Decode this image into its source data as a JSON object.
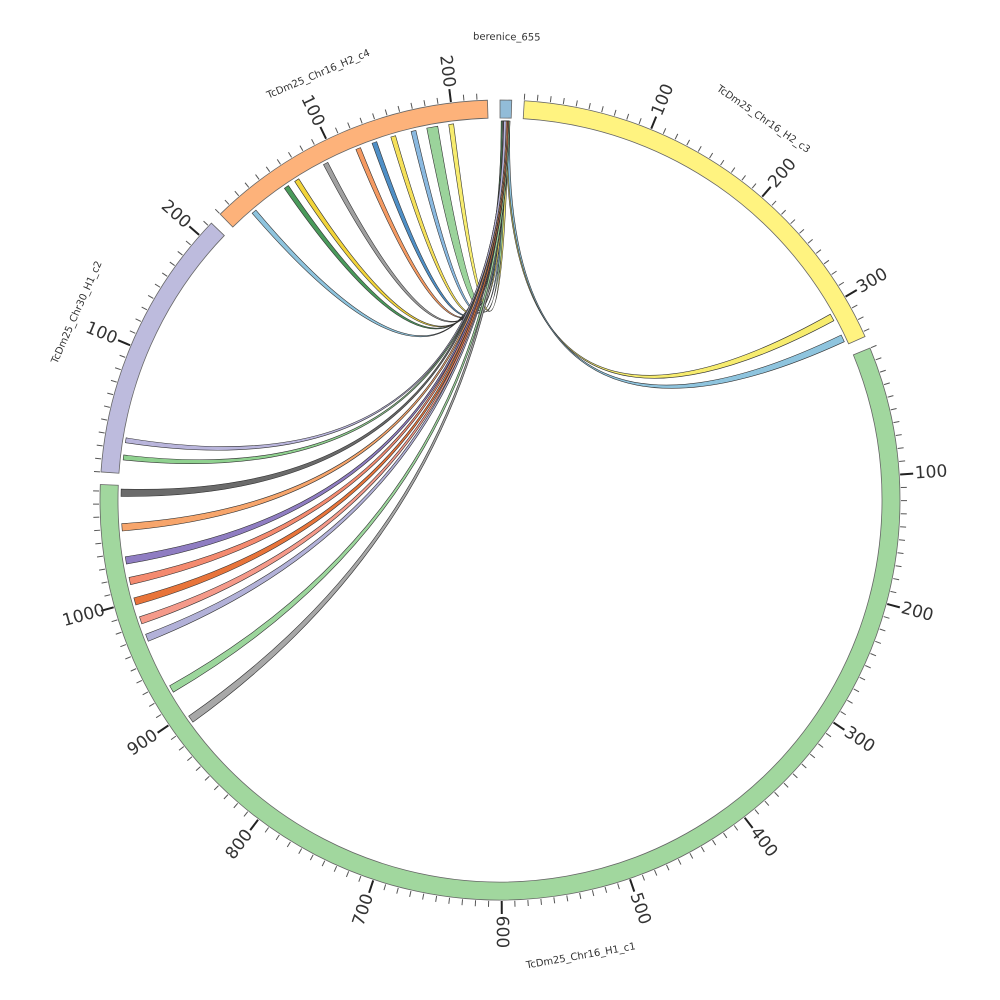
{
  "chart_data": {
    "type": "chord",
    "segments": [
      {
        "name": "berenice_655",
        "length": 9,
        "color": "#92bcd8",
        "ticks": []
      },
      {
        "name": "TcDm25_Chr16_H2_c3",
        "length": 334,
        "color": "#fff380",
        "ticks": [
          100,
          200,
          300
        ]
      },
      {
        "name": "TcDm25_Chr16_H1_c1",
        "length": 1095,
        "color": "#a1d79e",
        "ticks": [
          100,
          200,
          300,
          400,
          500,
          600,
          700,
          800,
          900,
          1000
        ]
      },
      {
        "name": "TcDm25_Chr30_H1_c2",
        "length": 213,
        "color": "#bdbbdd",
        "ticks": [
          100,
          200
        ]
      },
      {
        "name": "TcDm25_Chr16_H2_c4",
        "length": 228,
        "color": "#fdb27a",
        "ticks": [
          100,
          200
        ]
      }
    ],
    "links": [
      {
        "source": "berenice_655",
        "source_start": 1,
        "source_end": 3,
        "target": "TcDm25_Chr16_H2_c4",
        "target_start": 19,
        "target_end": 23,
        "color": "#8ec4de"
      },
      {
        "source": "berenice_655",
        "source_start": 1,
        "source_end": 3,
        "target": "TcDm25_Chr16_H2_c4",
        "target_start": 52,
        "target_end": 56,
        "color": "#4a9a5b"
      },
      {
        "source": "berenice_655",
        "source_start": 2,
        "source_end": 4,
        "target": "TcDm25_Chr16_H2_c4",
        "target_start": 62,
        "target_end": 66,
        "color": "#f2d43a"
      },
      {
        "source": "berenice_655",
        "source_start": 2,
        "source_end": 4,
        "target": "TcDm25_Chr16_H2_c4",
        "target_start": 89,
        "target_end": 93,
        "color": "#a0a0a0"
      },
      {
        "source": "berenice_655",
        "source_start": 3,
        "source_end": 5,
        "target": "TcDm25_Chr16_H2_c4",
        "target_start": 118,
        "target_end": 122,
        "color": "#f59a62"
      },
      {
        "source": "berenice_655",
        "source_start": 3,
        "source_end": 5,
        "target": "TcDm25_Chr16_H2_c4",
        "target_start": 132,
        "target_end": 136,
        "color": "#4f8fc6"
      },
      {
        "source": "berenice_655",
        "source_start": 3,
        "source_end": 5,
        "target": "TcDm25_Chr16_H2_c4",
        "target_start": 148,
        "target_end": 152,
        "color": "#f5e05a"
      },
      {
        "source": "berenice_655",
        "source_start": 4,
        "source_end": 6,
        "target": "TcDm25_Chr16_H2_c4",
        "target_start": 165,
        "target_end": 169,
        "color": "#8ab9e0"
      },
      {
        "source": "berenice_655",
        "source_start": 4,
        "source_end": 7,
        "target": "TcDm25_Chr16_H2_c4",
        "target_start": 178,
        "target_end": 187,
        "color": "#9bd39b"
      },
      {
        "source": "berenice_655",
        "source_start": 5,
        "source_end": 7,
        "target": "TcDm25_Chr16_H2_c4",
        "target_start": 196,
        "target_end": 200,
        "color": "#f7ec6e"
      },
      {
        "source": "berenice_655",
        "source_start": 5,
        "source_end": 7,
        "target": "TcDm25_Chr16_H2_c3",
        "target_start": 306,
        "target_end": 312,
        "color": "#f7ec6e"
      },
      {
        "source": "berenice_655",
        "source_start": 6,
        "source_end": 8,
        "target": "TcDm25_Chr16_H2_c3",
        "target_start": 325,
        "target_end": 331,
        "color": "#8ec4de"
      },
      {
        "source": "berenice_655",
        "source_start": 6,
        "source_end": 8,
        "target": "TcDm25_Chr16_H1_c1",
        "target_start": 891,
        "target_end": 897,
        "color": "#a8a8a8"
      },
      {
        "source": "berenice_655",
        "source_start": 6,
        "source_end": 8,
        "target": "TcDm25_Chr16_H1_c1",
        "target_start": 920,
        "target_end": 926,
        "color": "#9cd69c"
      },
      {
        "source": "berenice_655",
        "source_start": 5,
        "source_end": 7,
        "target": "TcDm25_Chr16_H1_c1",
        "target_start": 966,
        "target_end": 972,
        "color": "#b2b1d8"
      },
      {
        "source": "berenice_655",
        "source_start": 5,
        "source_end": 7,
        "target": "TcDm25_Chr16_H1_c1",
        "target_start": 981,
        "target_end": 987,
        "color": "#f59a8a"
      },
      {
        "source": "berenice_655",
        "source_start": 5,
        "source_end": 7,
        "target": "TcDm25_Chr16_H1_c1",
        "target_start": 997,
        "target_end": 1003,
        "color": "#e8743a"
      },
      {
        "source": "berenice_655",
        "source_start": 4,
        "source_end": 6,
        "target": "TcDm25_Chr16_H1_c1",
        "target_start": 1014,
        "target_end": 1020,
        "color": "#f48a6f"
      },
      {
        "source": "berenice_655",
        "source_start": 4,
        "source_end": 6,
        "target": "TcDm25_Chr16_H1_c1",
        "target_start": 1031,
        "target_end": 1037,
        "color": "#8f7dc2"
      },
      {
        "source": "berenice_655",
        "source_start": 4,
        "source_end": 6,
        "target": "TcDm25_Chr16_H1_c1",
        "target_start": 1058,
        "target_end": 1064,
        "color": "#f7a56b"
      },
      {
        "source": "berenice_655",
        "source_start": 3,
        "source_end": 5,
        "target": "TcDm25_Chr16_H1_c1",
        "target_start": 1086,
        "target_end": 1092,
        "color": "#6b6b6b"
      },
      {
        "source": "berenice_655",
        "source_start": 3,
        "source_end": 5,
        "target": "TcDm25_Chr30_H1_c2",
        "target_start": 11,
        "target_end": 15,
        "color": "#8fd18f"
      },
      {
        "source": "berenice_655",
        "source_start": 3,
        "source_end": 5,
        "target": "TcDm25_Chr30_H1_c2",
        "target_start": 25,
        "target_end": 29,
        "color": "#b9b5dc"
      }
    ]
  }
}
